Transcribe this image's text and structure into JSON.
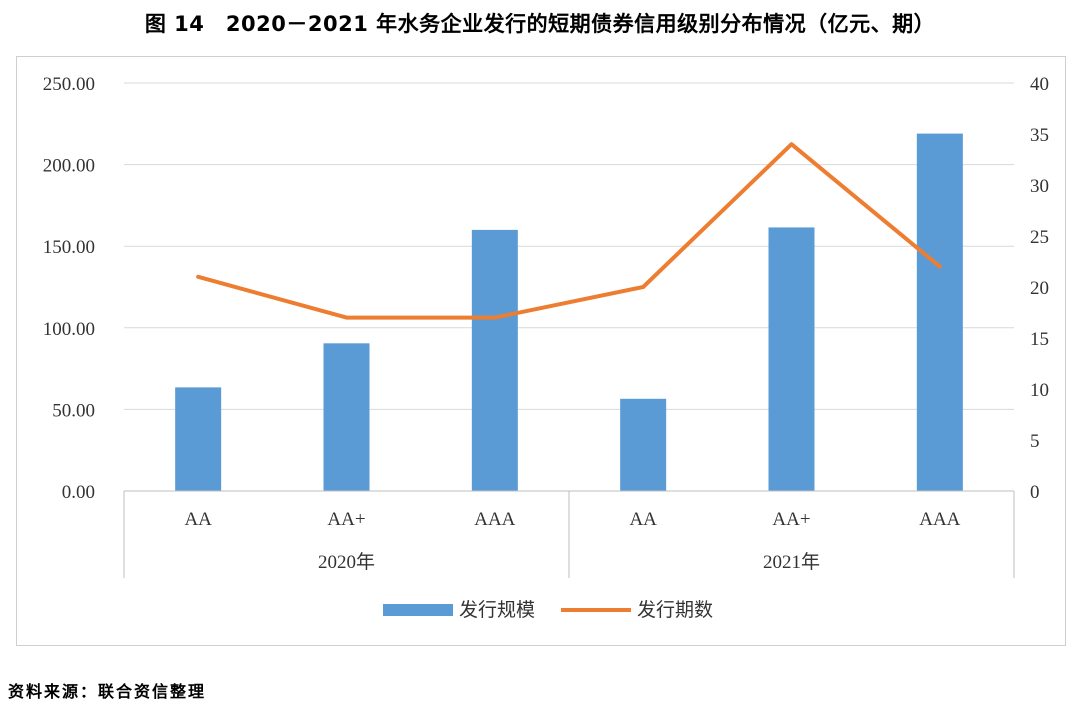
{
  "figure": {
    "title": "图 14　2020－2021 年水务企业发行的短期债券信用级别分布情况（亿元、期）",
    "source": "资料来源：联合资信整理"
  },
  "chart_data": {
    "type": "bar",
    "title": "",
    "groups": [
      {
        "label": "2020年",
        "categories": [
          "AA",
          "AA+",
          "AAA"
        ]
      },
      {
        "label": "2021年",
        "categories": [
          "AA",
          "AA+",
          "AAA"
        ]
      }
    ],
    "categories": [
      "AA",
      "AA+",
      "AAA",
      "AA",
      "AA+",
      "AAA"
    ],
    "series": [
      {
        "name": "发行规模",
        "type": "bar",
        "axis": "left",
        "color": "#5b9bd5",
        "values": [
          63.5,
          90.5,
          160.0,
          56.5,
          161.5,
          219.0
        ]
      },
      {
        "name": "发行期数",
        "type": "line",
        "axis": "right",
        "color": "#ed7d31",
        "values": [
          21,
          17,
          17,
          20,
          34,
          22
        ]
      }
    ],
    "y_left": {
      "min": 0,
      "max": 250,
      "step": 50,
      "ticks": [
        "0.00",
        "50.00",
        "100.00",
        "150.00",
        "200.00",
        "250.00"
      ]
    },
    "y_right": {
      "min": 0,
      "max": 40,
      "step": 5,
      "ticks": [
        "0",
        "5",
        "10",
        "15",
        "20",
        "25",
        "30",
        "35",
        "40"
      ]
    },
    "grid": true,
    "legend_position": "bottom"
  }
}
